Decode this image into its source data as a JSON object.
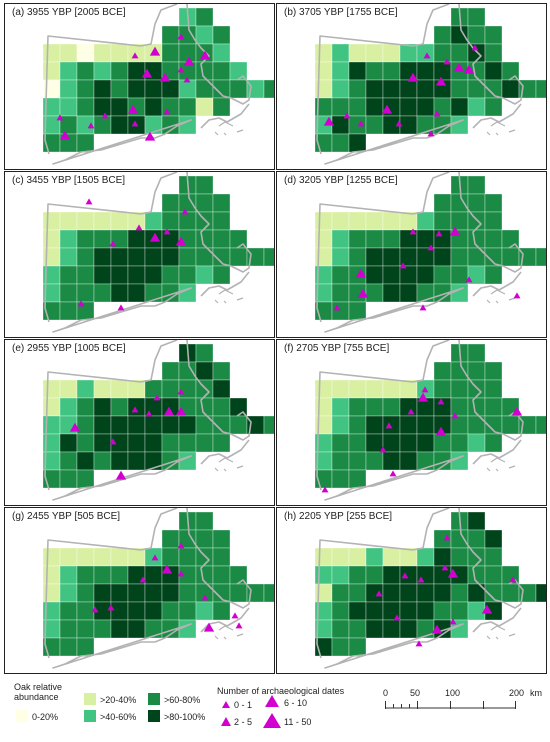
{
  "colors": {
    "bin0": "#ffffe5",
    "bin1": "#d9f0a3",
    "bin2": "#41c481",
    "bin3": "#1b8a45",
    "bin4": "#00441b",
    "dates": "#d100d1",
    "outline": "#b3b3b3"
  },
  "panels": [
    {
      "title": "(a) 3955 YBP [2005 BCE]"
    },
    {
      "title": "(b) 3705 YBP [1755 BCE]"
    },
    {
      "title": "(c) 3455 YBP [1505 BCE]"
    },
    {
      "title": "(d) 3205 YBP [1255 BCE]"
    },
    {
      "title": "(e) 2955 YBP [1005 BCE]"
    },
    {
      "title": "(f) 2705 YBP [755 BCE]"
    },
    {
      "title": "(g) 2455 YBP [505 BCE]"
    },
    {
      "title": "(h) 2205 YBP [255 BCE]"
    }
  ],
  "legend": {
    "oak_title_line1": "Oak relative",
    "oak_title_line2": "abundance",
    "bins": [
      "0-20%",
      ">20-40%",
      ">40-60%",
      ">60-80%",
      ">80-100%"
    ],
    "dates_title": "Number of archaeological dates",
    "date_bins": [
      "0 - 1",
      "2 - 5",
      "6 - 10",
      "11 - 50"
    ],
    "scale_ticks": [
      "0",
      "50",
      "100",
      "200"
    ],
    "scale_unit": "km"
  }
}
